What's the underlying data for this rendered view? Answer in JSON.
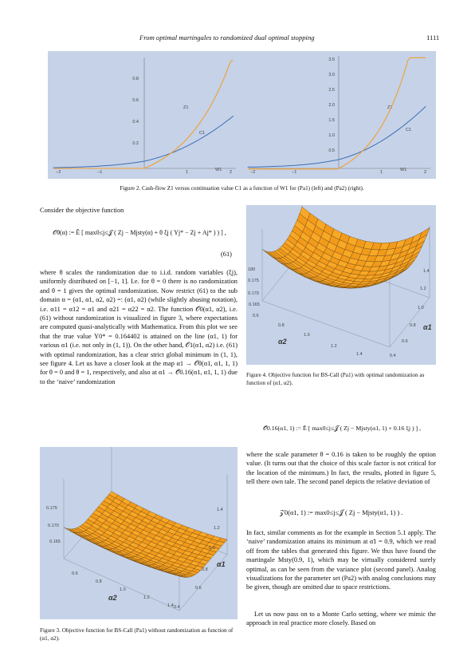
{
  "header": {
    "running_title": "From optimal martingales to randomized dual optimal stopping",
    "page_number": "1111"
  },
  "fig2": {
    "caption": "Figure 2.  Cash-flow Z1 versus continuation value C1 as a function of W1 for (Pa1) (left) and (Pa2) (right).",
    "left": {
      "yticks": [
        "0.8",
        "0.6",
        "0.4",
        "0.2"
      ],
      "xticks": [
        "−2",
        "−1",
        "1",
        "2"
      ],
      "xlabel": "W1",
      "label_z": "Z1",
      "label_c": "C1"
    },
    "right": {
      "yticks": [
        "3.5",
        "3.0",
        "2.5",
        "2.0",
        "1.5",
        "1.0",
        "0.5"
      ],
      "xticks": [
        "−2",
        "−1",
        "1",
        "2"
      ],
      "xlabel": "W1",
      "label_z": "Z1",
      "label_c": "C1"
    }
  },
  "text_left": {
    "intro": "Consider the objective function",
    "eq61_lhs": "𝒪θ(α) := Ẽ [ max0≤j≤𝒥 ( Zj − Mjsty(α) + θ ξj ( Yj* − Zj + Aj* ) ) ] ,",
    "eq61_number": "(61)",
    "paragraph": "where θ scales the randomization due to i.i.d. random variables (ξj), uniformly distributed on [−1, 1]. I.e. for θ = 0 there is no randomization and θ = 1 gives the optimal randomization. Now restrict (61) to the sub domain α = (α1, α1, α2, α2) =: (α1, α2) (while slightly abusing notation), i.e. α11 = α12 = α1 and α21 = α22 = α2. The function 𝒪0(α1, α2), i.e. (61) without randomization is visualized in figure 3, where expectations are computed quasi-analytically with Mathematica. From this plot we see that the true value Y0* = 0.164402 is attained on the line (α1, 1) for various α1 (i.e. not only in (1, 1)). On the other hand, 𝒪1(α1, α2) i.e. (61) with optimal randomization, has a clear strict global minimum in (1, 1), see figure 4. Let us have a closer look at the map α1 → 𝒪θ(α1, α1, 1, 1) for θ = 0 and θ = 1, respectively, and also at α1 → 𝒪̄0.16(α1, α1, 1, 1) due to the ‘naive’ randomization"
  },
  "fig3": {
    "caption": "Figure 3.  Objective function for BS-Call (Pa1) without randomization as function of (α1, α2).",
    "zticks": [
      "0.175",
      "0.170",
      "0.165"
    ],
    "a2ticks": [
      "0.6",
      "0.8",
      "1.0",
      "1.2",
      "1.4"
    ],
    "a1ticks": [
      "1.4",
      "1.2",
      "1.0",
      "0.8",
      "0.6",
      "0.4"
    ],
    "a1label": "α1",
    "a2label": "α2"
  },
  "fig4": {
    "caption": "Figure 4.  Objective function for BS-Call (Pa1) with optimal randomization as function of (α1, α2).",
    "zticks": [
      "180",
      "0.175",
      "0.170",
      "0.165"
    ],
    "a2ticks": [
      "0.6",
      "0.8",
      "1.0",
      "1.2",
      "1.4"
    ],
    "a1ticks": [
      "1.4",
      "1.2",
      "1.0",
      "0.8",
      "0.6",
      "0.4"
    ],
    "a1label": "α1",
    "a2label": "α2"
  },
  "text_right": {
    "eq_naive": "𝒪̄0.16(α1, 1) := Ẽ [ max0≤j≤𝒥 ( Zj − Mjsty(α1, 1) + 0.16 ξj ) ] ,",
    "para1": "where the scale parameter θ = 0.16 is taken to be roughly the option value. (It turns out that the choice of this scale factor is not critical for the location of the minimum.) In fact, the results, plotted in figure 5, tell there own tale. The second panel depicts the relative deviation of",
    "eq_z": "𝒵0(α1, 1) := max0≤j≤𝒥 ( Zj − Mjsty(α1, 1) ) .",
    "para2": "In fact, similar comments as for the example in Section 5.1 apply. The ‘naive’ randomization attains its minimum at α̃1 = 0.9, which we read off from the tables that generated this figure. We thus have found the martingale Msty(0.9, 1), which may be virtually considered surely optimal, as can be seen from the variance plot (second panel). Analog visualizations for the parameter set (Pa2) with analog conclusions may be given, though are omitted due to space restrictions.",
    "para3": "Let us now pass on to a Monte Carlo setting, where we mimic the approach in real practice more closely. Based on"
  },
  "colors": {
    "plot_bg": "#c5d2e8",
    "z_curve": "#f0a030",
    "c_curve": "#3d6fb5",
    "surface": "#f6a21e",
    "link": "#1a3ea8"
  }
}
